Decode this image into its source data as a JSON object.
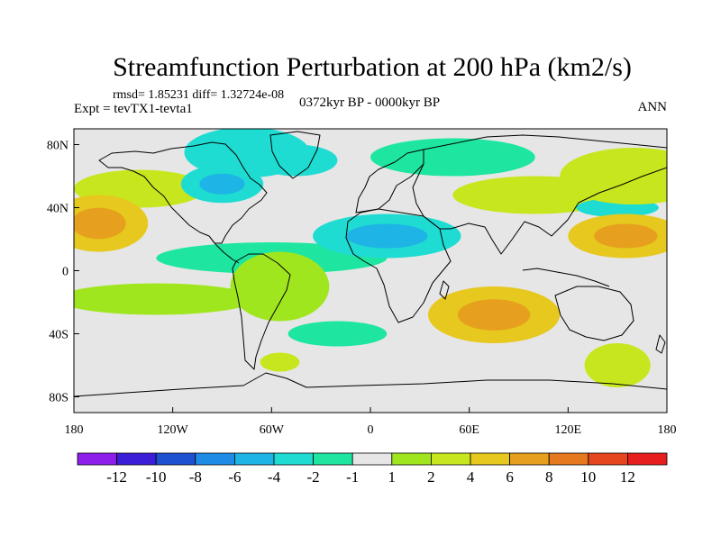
{
  "chart_data": {
    "type": "heatmap",
    "title": "Streamfunction Perturbation at 200 hPa (km2/s)",
    "stats": "rmsd= 1.85231 diff= 1.32724e-08",
    "experiment": "Expt = tevTX1-tevta1",
    "period": "0372kyr BP - 0000kyr BP",
    "season": "ANN",
    "xlabel": "",
    "ylabel": "",
    "x_range": [
      -180,
      180
    ],
    "y_range": [
      -90,
      90
    ],
    "x_ticks": [
      {
        "value": -180,
        "label": "180"
      },
      {
        "value": -120,
        "label": "120W"
      },
      {
        "value": -60,
        "label": "60W"
      },
      {
        "value": 0,
        "label": "0"
      },
      {
        "value": 60,
        "label": "60E"
      },
      {
        "value": 120,
        "label": "120E"
      },
      {
        "value": 180,
        "label": "180"
      }
    ],
    "y_ticks": [
      {
        "value": 80,
        "label": "80N"
      },
      {
        "value": 40,
        "label": "40N"
      },
      {
        "value": 0,
        "label": "0"
      },
      {
        "value": -40,
        "label": "40S"
      },
      {
        "value": -80,
        "label": "80S"
      }
    ],
    "colorbar": {
      "bins": [
        {
          "color": "#8e1eea"
        },
        {
          "color": "#3c1ed8"
        },
        {
          "color": "#1e50d2"
        },
        {
          "color": "#1e8ce6"
        },
        {
          "color": "#1eb4e6"
        },
        {
          "color": "#1edcd2"
        },
        {
          "color": "#1ee6a0"
        },
        {
          "color": "#e6e6e6"
        },
        {
          "color": "#a0e61e"
        },
        {
          "color": "#c8e61e"
        },
        {
          "color": "#e6c81e"
        },
        {
          "color": "#e6a01e"
        },
        {
          "color": "#e6781e"
        },
        {
          "color": "#e6461e"
        },
        {
          "color": "#e61e1e"
        }
      ],
      "labels": [
        "-12",
        "-10",
        "-8",
        "-6",
        "-4",
        "-2",
        "-1",
        "1",
        "2",
        "4",
        "6",
        "8",
        "10",
        "12"
      ]
    },
    "fields": [
      {
        "name": "arctic-negative",
        "lon": -75,
        "lat": 75,
        "rlon": 38,
        "rlat": 16,
        "value": -2.2
      },
      {
        "name": "canada-low",
        "lon": -90,
        "lat": 55,
        "rlon": 25,
        "rlat": 12,
        "value": -4.0
      },
      {
        "name": "greenland-low",
        "lon": -45,
        "lat": 70,
        "rlon": 25,
        "rlat": 10,
        "value": -3.0
      },
      {
        "name": "eurasia-low",
        "lon": 50,
        "lat": 72,
        "rlon": 50,
        "rlat": 12,
        "value": -2.0
      },
      {
        "name": "pacific-high",
        "lon": -165,
        "lat": 30,
        "rlon": 30,
        "rlat": 18,
        "value": 4.2
      },
      {
        "name": "npacific-high",
        "lon": -140,
        "lat": 52,
        "rlon": 40,
        "rlat": 12,
        "value": 2.5
      },
      {
        "name": "asia-high",
        "lon": 160,
        "lat": 60,
        "rlon": 45,
        "rlat": 18,
        "value": 2.8
      },
      {
        "name": "siberia-band",
        "lon": 100,
        "lat": 48,
        "rlon": 50,
        "rlat": 12,
        "value": 2.2
      },
      {
        "name": "wpacific-high",
        "lon": 155,
        "lat": 22,
        "rlon": 35,
        "rlat": 14,
        "value": 4.0
      },
      {
        "name": "nafrica-low",
        "lon": 10,
        "lat": 22,
        "rlon": 45,
        "rlat": 14,
        "value": -4.0
      },
      {
        "name": "npacific-low",
        "lon": 150,
        "lat": 40,
        "rlon": 25,
        "rlat": 6,
        "value": -2.2
      },
      {
        "name": "indian-high",
        "lon": 75,
        "lat": -28,
        "rlon": 40,
        "rlat": 18,
        "value": 5.0
      },
      {
        "name": "samerica-high",
        "lon": -55,
        "lat": -10,
        "rlon": 30,
        "rlat": 22,
        "value": 1.8
      },
      {
        "name": "epac-high",
        "lon": -130,
        "lat": -18,
        "rlon": 60,
        "rlat": 10,
        "value": 1.6
      },
      {
        "name": "atlantic-low",
        "lon": -60,
        "lat": 8,
        "rlon": 70,
        "rlat": 10,
        "value": -1.6
      },
      {
        "name": "spacific-low",
        "lon": -20,
        "lat": -40,
        "rlon": 30,
        "rlat": 8,
        "value": -2.0
      },
      {
        "name": "sindian-high",
        "lon": 150,
        "lat": -60,
        "rlon": 20,
        "rlat": 14,
        "value": 2.0
      },
      {
        "name": "southern-high",
        "lon": -55,
        "lat": -58,
        "rlon": 12,
        "rlat": 6,
        "value": 2.0
      }
    ]
  }
}
